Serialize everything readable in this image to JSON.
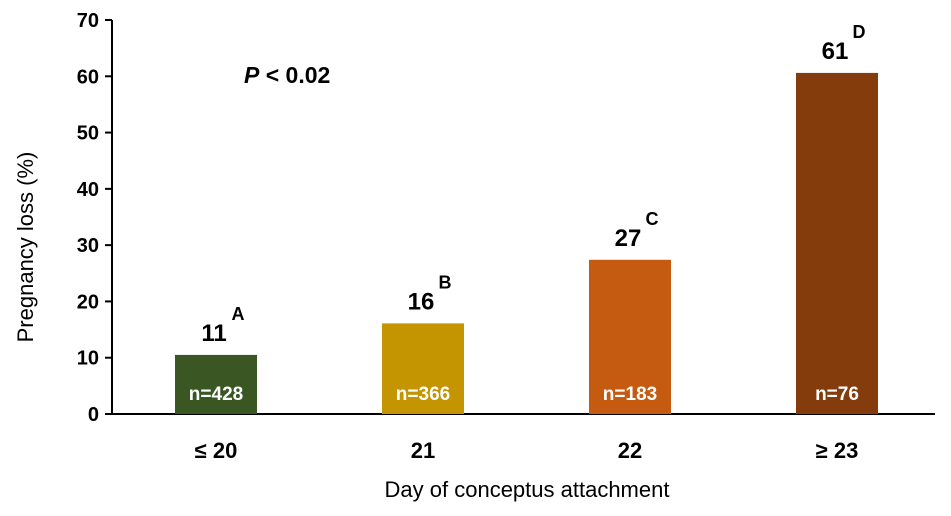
{
  "chart_data": {
    "type": "bar",
    "categories": [
      "≤ 20",
      "21",
      "22",
      "≥ 23"
    ],
    "values": [
      10.5,
      16.1,
      27.4,
      60.6
    ],
    "value_labels": [
      "11",
      "16",
      "27",
      "61"
    ],
    "superscripts": [
      "A",
      "B",
      "C",
      "D"
    ],
    "n_labels": [
      "n=428",
      "n=366",
      "n=183",
      "n=76"
    ],
    "colors": [
      "#3a5723",
      "#c49500",
      "#c55a11",
      "#843c0c"
    ],
    "xlabel": "Day of conceptus attachment",
    "ylabel": "Pregnancy loss (%)",
    "ylim": [
      0,
      70
    ],
    "yticks": [
      0,
      10,
      20,
      30,
      40,
      50,
      60,
      70
    ],
    "annotation": {
      "italic": "P",
      "rest": " < 0.02"
    },
    "grid": false,
    "legend": "none"
  }
}
